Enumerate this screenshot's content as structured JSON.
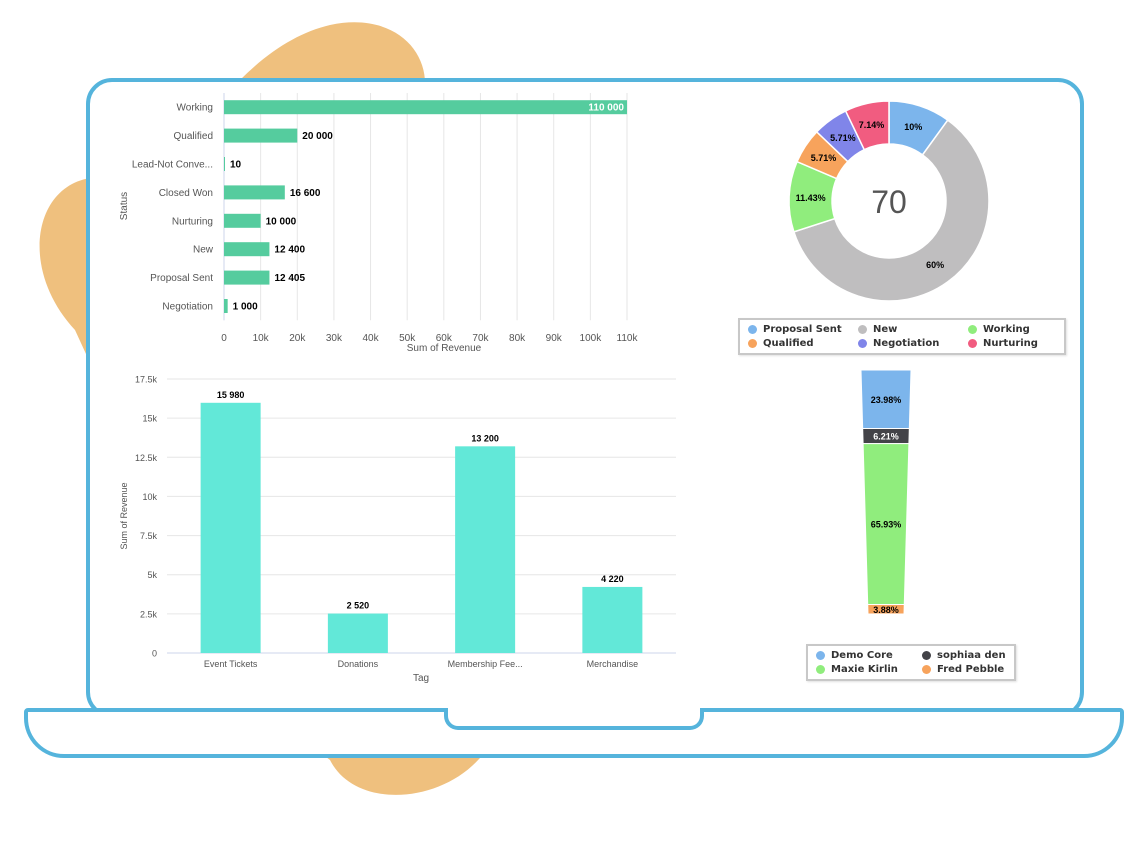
{
  "colors": {
    "frame": "#55b4dc",
    "blob": "#efc07e",
    "hbar": "#55cc9e",
    "vbar": "#62e8d8"
  },
  "status_revenue_chart": {
    "type": "bar",
    "orientation": "horizontal",
    "ylabel": "Status",
    "xlabel": "Sum of Revenue",
    "categories": [
      "Working",
      "Qualified",
      "Lead-Not Conve...",
      "Closed Won",
      "Nurturing",
      "New",
      "Proposal Sent",
      "Negotiation"
    ],
    "values": [
      110000,
      20000,
      10,
      16600,
      10000,
      12400,
      12405,
      1000
    ],
    "value_labels": [
      "110 000",
      "20 000",
      "10",
      "16 600",
      "10 000",
      "12 400",
      "12 405",
      "1 000"
    ],
    "xlim": [
      0,
      110000
    ],
    "ticks": [
      0,
      10000,
      20000,
      30000,
      40000,
      50000,
      60000,
      70000,
      80000,
      90000,
      100000,
      110000
    ],
    "tick_labels": [
      "0",
      "10k",
      "20k",
      "30k",
      "40k",
      "50k",
      "60k",
      "70k",
      "80k",
      "90k",
      "100k",
      "110k"
    ],
    "grid": true,
    "color": "#55cc9e"
  },
  "tag_revenue_chart": {
    "type": "bar",
    "orientation": "vertical",
    "xlabel": "Tag",
    "ylabel": "Sum of Revenue",
    "categories": [
      "Event Tickets",
      "Donations",
      "Membership Fee...",
      "Merchandise"
    ],
    "values": [
      15980,
      2520,
      13200,
      4220
    ],
    "value_labels": [
      "15 980",
      "2 520",
      "13 200",
      "4 220"
    ],
    "ylim": [
      0,
      17500
    ],
    "ticks": [
      0,
      2500,
      5000,
      7500,
      10000,
      12500,
      15000,
      17500
    ],
    "tick_labels": [
      "0",
      "2.5k",
      "5k",
      "7.5k",
      "10k",
      "12.5k",
      "15k",
      "17.5k"
    ],
    "grid": true,
    "color": "#62e8d8"
  },
  "status_donut_chart": {
    "type": "pie",
    "center_label": "70",
    "slices": [
      {
        "name": "Proposal Sent",
        "value": 10,
        "label": "10%",
        "color": "#7cb5ec"
      },
      {
        "name": "New",
        "value": 60,
        "label": "60%",
        "color": "#bfbebf"
      },
      {
        "name": "Working",
        "value": 11.43,
        "label": "11.43%",
        "color": "#90ed7d"
      },
      {
        "name": "Qualified",
        "value": 5.71,
        "label": "5.71%",
        "color": "#f7a35c"
      },
      {
        "name": "Negotiation",
        "value": 5.71,
        "label": "5.71%",
        "color": "#8085e9"
      },
      {
        "name": "Nurturing",
        "value": 7.14,
        "label": "7.14%",
        "color": "#f15c80"
      }
    ],
    "legend_order": [
      "Proposal Sent",
      "New",
      "Working",
      "Qualified",
      "Negotiation",
      "Nurturing"
    ],
    "legend_placement": "bottom"
  },
  "owner_funnel_chart": {
    "type": "bar",
    "orientation": "stacked-vertical",
    "segments": [
      {
        "name": "Demo Core",
        "value": 23.98,
        "label": "23.98%",
        "color": "#7cb5ec"
      },
      {
        "name": "sophiaa den",
        "value": 6.21,
        "label": "6.21%",
        "color": "#434348"
      },
      {
        "name": "Maxie Kirlin",
        "value": 65.93,
        "label": "65.93%",
        "color": "#90ed7d"
      },
      {
        "name": "Fred Pebble",
        "value": 3.88,
        "label": "3.88%",
        "color": "#f7a35c"
      }
    ],
    "legend_order": [
      "Demo Core",
      "sophiaa den",
      "Maxie Kirlin",
      "Fred Pebble"
    ],
    "legend_placement": "bottom"
  },
  "chart_data": [
    {
      "type": "bar",
      "categories": [
        "Working",
        "Qualified",
        "Lead-Not Conve...",
        "Closed Won",
        "Nurturing",
        "New",
        "Proposal Sent",
        "Negotiation"
      ],
      "values": [
        110000,
        20000,
        10,
        16600,
        10000,
        12400,
        12405,
        1000
      ],
      "xlabel": "Sum of Revenue",
      "ylabel": "Status",
      "xlim": [
        0,
        110000
      ]
    },
    {
      "type": "bar",
      "categories": [
        "Event Tickets",
        "Donations",
        "Membership Fee...",
        "Merchandise"
      ],
      "values": [
        15980,
        2520,
        13200,
        4220
      ],
      "xlabel": "Tag",
      "ylabel": "Sum of Revenue",
      "ylim": [
        0,
        17500
      ]
    },
    {
      "type": "pie",
      "categories": [
        "Proposal Sent",
        "New",
        "Working",
        "Qualified",
        "Negotiation",
        "Nurturing"
      ],
      "values": [
        10,
        60,
        11.43,
        5.71,
        5.71,
        7.14
      ],
      "annotation": "70"
    },
    {
      "type": "bar",
      "categories": [
        "Demo Core",
        "sophiaa den",
        "Maxie Kirlin",
        "Fred Pebble"
      ],
      "values": [
        23.98,
        6.21,
        65.93,
        3.88
      ]
    }
  ]
}
